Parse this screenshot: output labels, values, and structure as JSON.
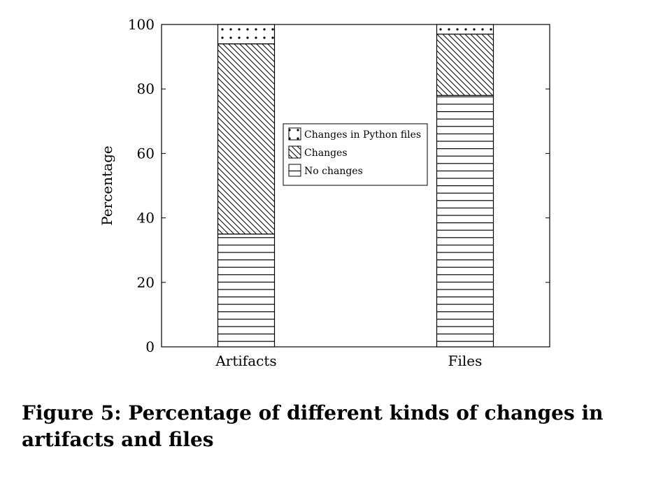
{
  "chart_data": {
    "type": "bar",
    "stacked": true,
    "categories": [
      "Artifacts",
      "Files"
    ],
    "series": [
      {
        "name": "No changes",
        "values": [
          35,
          78
        ],
        "pattern": "horizontal-lines"
      },
      {
        "name": "Changes",
        "values": [
          59,
          19
        ],
        "pattern": "diagonal-lines"
      },
      {
        "name": "Changes in Python files",
        "values": [
          6,
          3
        ],
        "pattern": "dots"
      }
    ],
    "ylabel": "Percentage",
    "xlabel": "",
    "ylim": [
      0,
      100
    ],
    "yticks": [
      0,
      20,
      40,
      60,
      80,
      100
    ],
    "grid": false,
    "legend_position": "center",
    "legend_order": [
      "Changes in Python files",
      "Changes",
      "No changes"
    ]
  },
  "caption": "Figure 5: Percentage of different kinds of changes in artifacts and files",
  "colors": {
    "ink": "#000000",
    "background": "#ffffff"
  }
}
